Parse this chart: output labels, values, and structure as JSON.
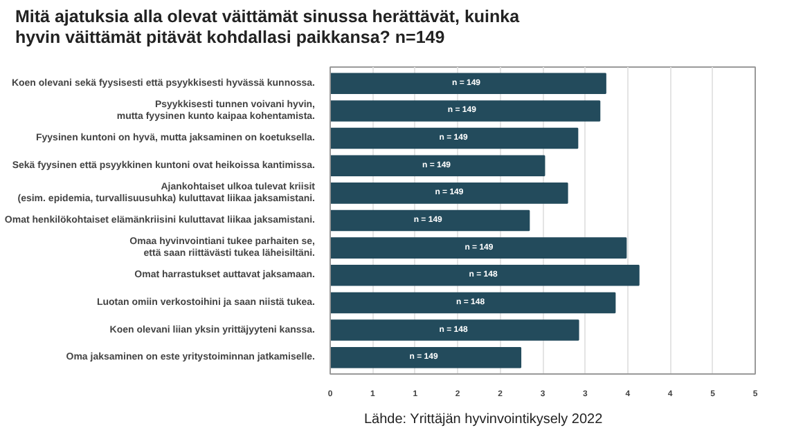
{
  "chart_data": {
    "type": "bar",
    "orientation": "horizontal",
    "title": "Mitä ajatuksia alla olevat väittämät sinussa herättävät, kuinka\nhyvin väittämät pitävät kohdallasi paikkansa? n=149",
    "categories": [
      "Koen olevani sekä fyysisesti että psyykkisesti hyvässä kunnossa.",
      "Psyykkisesti tunnen voivani hyvin,\nmutta fyysinen kunto kaipaa kohentamista.",
      "Fyysinen kuntoni on hyvä, mutta jaksaminen on koetuksella.",
      "Sekä fyysinen että psyykkinen kuntoni ovat heikoissa kantimissa.",
      "Ajankohtaiset ulkoa tulevat kriisit\n(esim. epidemia, turvallisuusuhka) kuluttavat liikaa jaksamistani.",
      "Omat henkilökohtaiset elämänkriisini kuluttavat liikaa jaksamistani.",
      "Omaa hyvinvointiani tukee parhaiten se,\nettä saan riittävästi tukea läheisiltäni.",
      "Omat harrastukset auttavat jaksamaan.",
      "Luotan omiin verkostoihini ja saan niistä tukea.",
      "Koen olevani liian yksin yrittäjyyteni kanssa.",
      "Oma jaksaminen on este yritystoiminnan jatkamiselle."
    ],
    "values": [
      3.24,
      3.17,
      2.91,
      2.52,
      2.79,
      2.34,
      3.48,
      3.63,
      3.35,
      2.92,
      2.24
    ],
    "color": "#234b5c",
    "xlim": [
      0,
      5
    ],
    "xticks": [
      0,
      {
        "value": 0.5,
        "label": "1"
      },
      1,
      {
        "value": 1.5,
        "label": "2"
      },
      2,
      {
        "value": 2.5,
        "label": "3"
      },
      3,
      {
        "value": 3.5,
        "label": "4"
      },
      4,
      {
        "value": 4.5,
        "label": "5"
      },
      5
    ],
    "grid": "x",
    "annotations": [
      {
        "text": "n = 149",
        "x": 1.6,
        "y": "Koen olevani sekä fyysisesti että psyykkisesti hyvässä kunnossa."
      },
      {
        "text": "n = 149",
        "x": 1.55,
        "y": "Psyykkisesti tunnen voivani hyvin,\nmutta fyysinen kunto kaipaa kohentamista."
      },
      {
        "text": "n = 149",
        "x": 1.45,
        "y": "Fyysinen kuntoni on hyvä, mutta jaksaminen on koetuksella."
      },
      {
        "text": "n = 149",
        "x": 1.25,
        "y": "Sekä fyysinen että psyykkinen kuntoni ovat heikoissa kantimissa."
      },
      {
        "text": "n = 149",
        "x": 1.4,
        "y": "Ajankohtaiset ulkoa tulevat kriisit\n(esim. epidemia, turvallisuusuhka) kuluttavat liikaa jaksamistani."
      },
      {
        "text": "n = 149",
        "x": 1.15,
        "y": "Omat henkilökohtaiset elämänkriisini kuluttavat liikaa jaksamistani."
      },
      {
        "text": "n = 149",
        "x": 1.75,
        "y": "Omaa hyvinvointiani tukee parhaiten se,\nettä saan riittävästi tukea läheisiltäni."
      },
      {
        "text": "n = 148",
        "x": 1.8,
        "y": "Omat harrastukset auttavat jaksamaan."
      },
      {
        "text": "n = 148",
        "x": 1.65,
        "y": "Luotan omiin verkostoihini ja saan niistä tukea."
      },
      {
        "text": "n = 148",
        "x": 1.45,
        "y": "Koen olevani liian yksin yrittäjyyteni kanssa."
      },
      {
        "text": "n = 149",
        "x": 1.1,
        "y": "Oma jaksaminen on este yritystoiminnan jatkamiselle."
      },
      "Lähde: Yrittäjän hyvinvointikysely 2022"
    ]
  }
}
